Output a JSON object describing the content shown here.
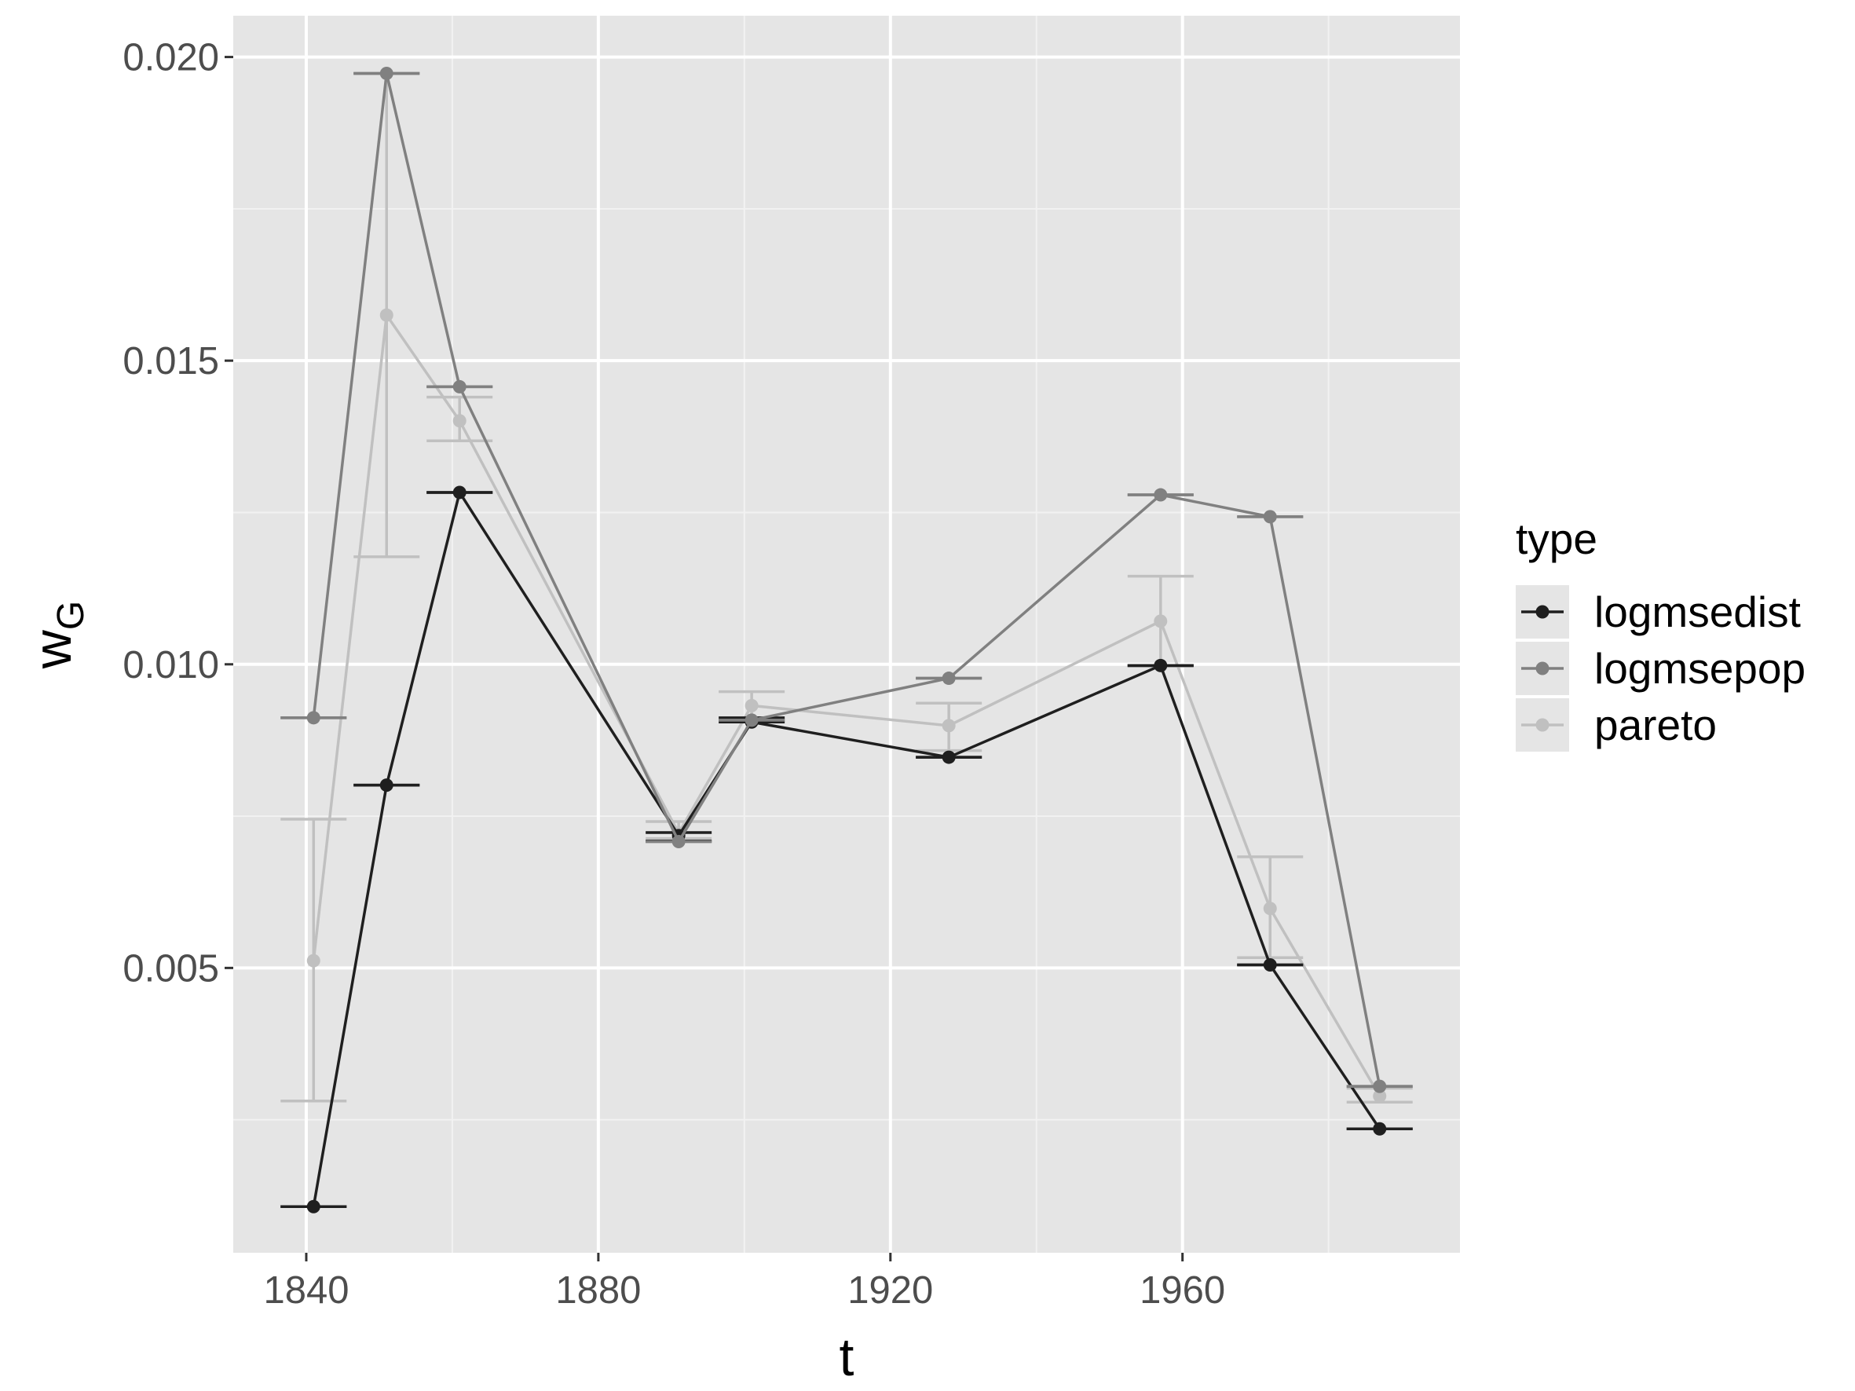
{
  "chart_data": {
    "type": "line",
    "title": "",
    "xlabel": "t",
    "ylabel": "w",
    "ylabel_subscript": "G",
    "xlim": [
      1830,
      1998
    ],
    "ylim": [
      0.00031,
      0.02068
    ],
    "x_ticks": [
      1840,
      1880,
      1920,
      1960
    ],
    "x_tick_labels": [
      "1840",
      "1880",
      "1920",
      "1960"
    ],
    "x_minor_ticks": [
      1860,
      1900,
      1940,
      1980
    ],
    "y_ticks": [
      0.005,
      0.01,
      0.015,
      0.02
    ],
    "y_tick_labels": [
      "0.005",
      "0.010",
      "0.015",
      "0.020"
    ],
    "y_minor_ticks": [
      0.0025,
      0.0075,
      0.0125,
      0.0175
    ],
    "grid": true,
    "legend": {
      "title": "type",
      "position": "right"
    },
    "series": [
      {
        "name": "logmsedist",
        "color": "#1f1f1f",
        "x": [
          1841,
          1851,
          1861,
          1891,
          1901,
          1928,
          1957,
          1972,
          1987
        ],
        "y": [
          0.00107,
          0.00801,
          0.01283,
          0.00718,
          0.00905,
          0.00847,
          0.00998,
          0.00505,
          0.00235
        ],
        "err_low": [
          0.00107,
          0.00801,
          0.01283,
          0.00709,
          0.00905,
          0.00847,
          0.00998,
          0.00505,
          0.00235
        ],
        "err_high": [
          0.00107,
          0.00801,
          0.01283,
          0.00723,
          0.00912,
          0.00847,
          0.00998,
          0.00505,
          0.00235
        ]
      },
      {
        "name": "logmsepop",
        "color": "#808080",
        "x": [
          1841,
          1851,
          1861,
          1891,
          1901,
          1928,
          1957,
          1972,
          1987
        ],
        "y": [
          0.00912,
          0.01973,
          0.01457,
          0.00708,
          0.00908,
          0.00977,
          0.01279,
          0.01243,
          0.00305
        ],
        "err_low": [
          0.00912,
          0.01973,
          0.01457,
          0.00708,
          0.00908,
          0.00977,
          0.01279,
          0.01243,
          0.00305
        ],
        "err_high": [
          0.00912,
          0.01973,
          0.01457,
          0.00708,
          0.00908,
          0.00977,
          0.01279,
          0.01243,
          0.00305
        ]
      },
      {
        "name": "pareto",
        "color": "#c0c0c0",
        "x": [
          1841,
          1851,
          1861,
          1891,
          1901,
          1928,
          1957,
          1972,
          1987
        ],
        "y": [
          0.00512,
          0.01575,
          0.01401,
          0.00722,
          0.00932,
          0.00899,
          0.01071,
          0.00598,
          0.00289
        ],
        "err_low": [
          0.00281,
          0.01177,
          0.01368,
          0.00713,
          0.0091,
          0.00858,
          0.00997,
          0.00517,
          0.00279
        ],
        "err_high": [
          0.00745,
          0.01973,
          0.0144,
          0.00741,
          0.00955,
          0.00936,
          0.01145,
          0.00683,
          0.00302
        ]
      }
    ]
  }
}
